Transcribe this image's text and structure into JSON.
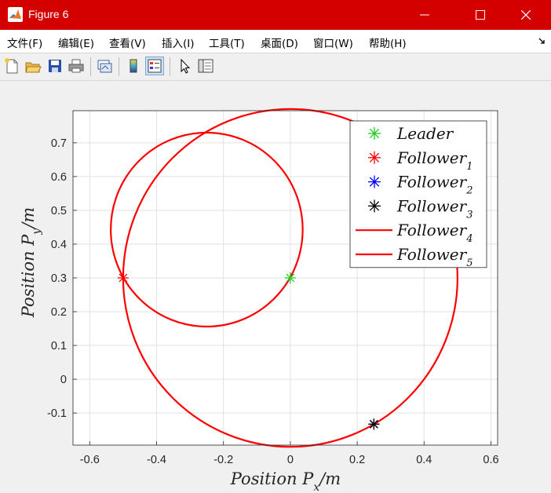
{
  "window": {
    "title": "Figure 6"
  },
  "menu": [
    "文件(F)",
    "编辑(E)",
    "查看(V)",
    "插入(I)",
    "工具(T)",
    "桌面(D)",
    "窗口(W)",
    "帮助(H)"
  ],
  "toolbar_icons": [
    "new-figure-icon",
    "open-icon",
    "save-icon",
    "print-icon",
    "link-plot-icon",
    "colorbar-icon",
    "legend-icon",
    "pointer-icon",
    "property-inspector-icon"
  ],
  "colors": {
    "titlebar": "#d40000",
    "leader": "#22cc22",
    "follower1": "#ff0000",
    "follower2": "#0000ff",
    "follower3": "#000000",
    "curve": "#ff0000"
  },
  "chart_data": {
    "type": "line",
    "xlabel": "Position P_x/m",
    "ylabel": "Position P_y/m",
    "xlim": [
      -0.65,
      0.62
    ],
    "ylim": [
      -0.195,
      0.795
    ],
    "xticks": [
      "-0.6",
      "-0.4",
      "-0.2",
      "0",
      "0.2",
      "0.4",
      "0.6"
    ],
    "xtick_values": [
      -0.6,
      -0.4,
      -0.2,
      0,
      0.2,
      0.4,
      0.6
    ],
    "yticks": [
      "-0.1",
      "0",
      "0.1",
      "0.2",
      "0.3",
      "0.4",
      "0.5",
      "0.6",
      "0.7"
    ],
    "ytick_values": [
      -0.1,
      0,
      0.1,
      0.2,
      0.3,
      0.4,
      0.5,
      0.6,
      0.7
    ],
    "grid": true,
    "legend_position": "top-right",
    "markers": [
      {
        "name": "Leader",
        "x": 0.0,
        "y": 0.3,
        "color": "#22cc22"
      },
      {
        "name": "Follower1",
        "x": -0.5,
        "y": 0.3,
        "color": "#ff0000"
      },
      {
        "name": "Follower2",
        "x": 0.25,
        "y": -0.133,
        "color": "#0000ff"
      },
      {
        "name": "Follower3",
        "x": 0.25,
        "y": -0.133,
        "color": "#000000"
      }
    ],
    "curves": [
      {
        "name": "Follower4",
        "center": [
          -0.25,
          0.443
        ],
        "radius": 0.287,
        "color": "#ff0000"
      },
      {
        "name": "Follower5",
        "center": [
          0.0,
          0.3
        ],
        "radius": 0.5,
        "color": "#ff0000"
      }
    ],
    "legend": [
      {
        "base": "Leader",
        "sub": "",
        "kind": "marker",
        "color": "#22cc22"
      },
      {
        "base": "Follower",
        "sub": "1",
        "kind": "marker",
        "color": "#ff0000"
      },
      {
        "base": "Follower",
        "sub": "2",
        "kind": "marker",
        "color": "#0000ff"
      },
      {
        "base": "Follower",
        "sub": "3",
        "kind": "marker",
        "color": "#000000"
      },
      {
        "base": "Follower",
        "sub": "4",
        "kind": "line",
        "color": "#ff0000"
      },
      {
        "base": "Follower",
        "sub": "5",
        "kind": "line",
        "color": "#ff0000"
      }
    ]
  }
}
